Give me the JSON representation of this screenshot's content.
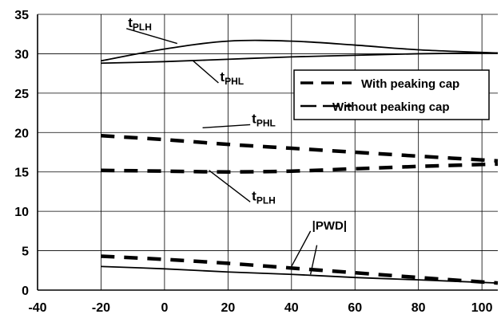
{
  "chart_data": {
    "type": "line",
    "title": "",
    "xlabel": "",
    "ylabel": "",
    "xlim": [
      -40,
      105
    ],
    "ylim": [
      0,
      35
    ],
    "x_ticks": [
      -40,
      -20,
      0,
      20,
      40,
      60,
      80,
      100
    ],
    "y_ticks": [
      0,
      5,
      10,
      15,
      20,
      25,
      30,
      35
    ],
    "grid": true,
    "legend": {
      "placement": "right",
      "entries": [
        {
          "label": "With peaking cap",
          "style": "dashed"
        },
        {
          "label": "Without peaking cap",
          "style": "solid"
        }
      ]
    },
    "series": [
      {
        "style": "solid",
        "x": [
          -20,
          0,
          20,
          40,
          60,
          80,
          105
        ],
        "y": [
          29.1,
          30.6,
          31.6,
          31.6,
          31.1,
          30.5,
          30.1
        ]
      },
      {
        "style": "solid",
        "x": [
          -20,
          0,
          20,
          40,
          60,
          80,
          105
        ],
        "y": [
          28.8,
          29.0,
          29.3,
          29.6,
          29.8,
          30.0,
          30.1
        ]
      },
      {
        "style": "dashed",
        "x": [
          -20,
          0,
          20,
          40,
          60,
          80,
          105
        ],
        "y": [
          19.6,
          19.1,
          18.5,
          18.0,
          17.5,
          17.0,
          16.4
        ]
      },
      {
        "style": "dashed",
        "x": [
          -20,
          0,
          20,
          40,
          60,
          80,
          105
        ],
        "y": [
          15.2,
          15.1,
          15.0,
          15.1,
          15.4,
          15.7,
          16.0
        ]
      },
      {
        "style": "dashed",
        "x": [
          -20,
          0,
          20,
          40,
          60,
          80,
          105
        ],
        "y": [
          4.3,
          3.9,
          3.4,
          2.8,
          2.2,
          1.6,
          0.9
        ]
      },
      {
        "style": "solid",
        "x": [
          -20,
          0,
          20,
          40,
          60,
          80,
          105
        ],
        "y": [
          3.0,
          2.7,
          2.3,
          2.0,
          1.6,
          1.3,
          0.9
        ]
      }
    ],
    "annotations": [
      {
        "main": "t",
        "sub": "PLH",
        "x": -12,
        "y": 33.2,
        "arrow_to": [
          4,
          31.3
        ]
      },
      {
        "main": "t",
        "sub": "PHL",
        "x": 17,
        "y": 26.3,
        "arrow_to": [
          9,
          29.1
        ]
      },
      {
        "main": "t",
        "sub": "PHL",
        "x": 27,
        "y": 21.0,
        "arrow_to": [
          12,
          20.6
        ]
      },
      {
        "main": "t",
        "sub": "PLH",
        "x": 27,
        "y": 11.2,
        "arrow_to": [
          14,
          15.2
        ]
      },
      {
        "main": "|PWD|",
        "sub": "",
        "x": 46,
        "y": 7.5,
        "arrow_to": [
          40,
          3.0
        ]
      },
      {
        "main": "",
        "sub": "",
        "x": 48,
        "y": 5.7,
        "arrow_to": [
          46,
          2.0
        ]
      }
    ]
  }
}
